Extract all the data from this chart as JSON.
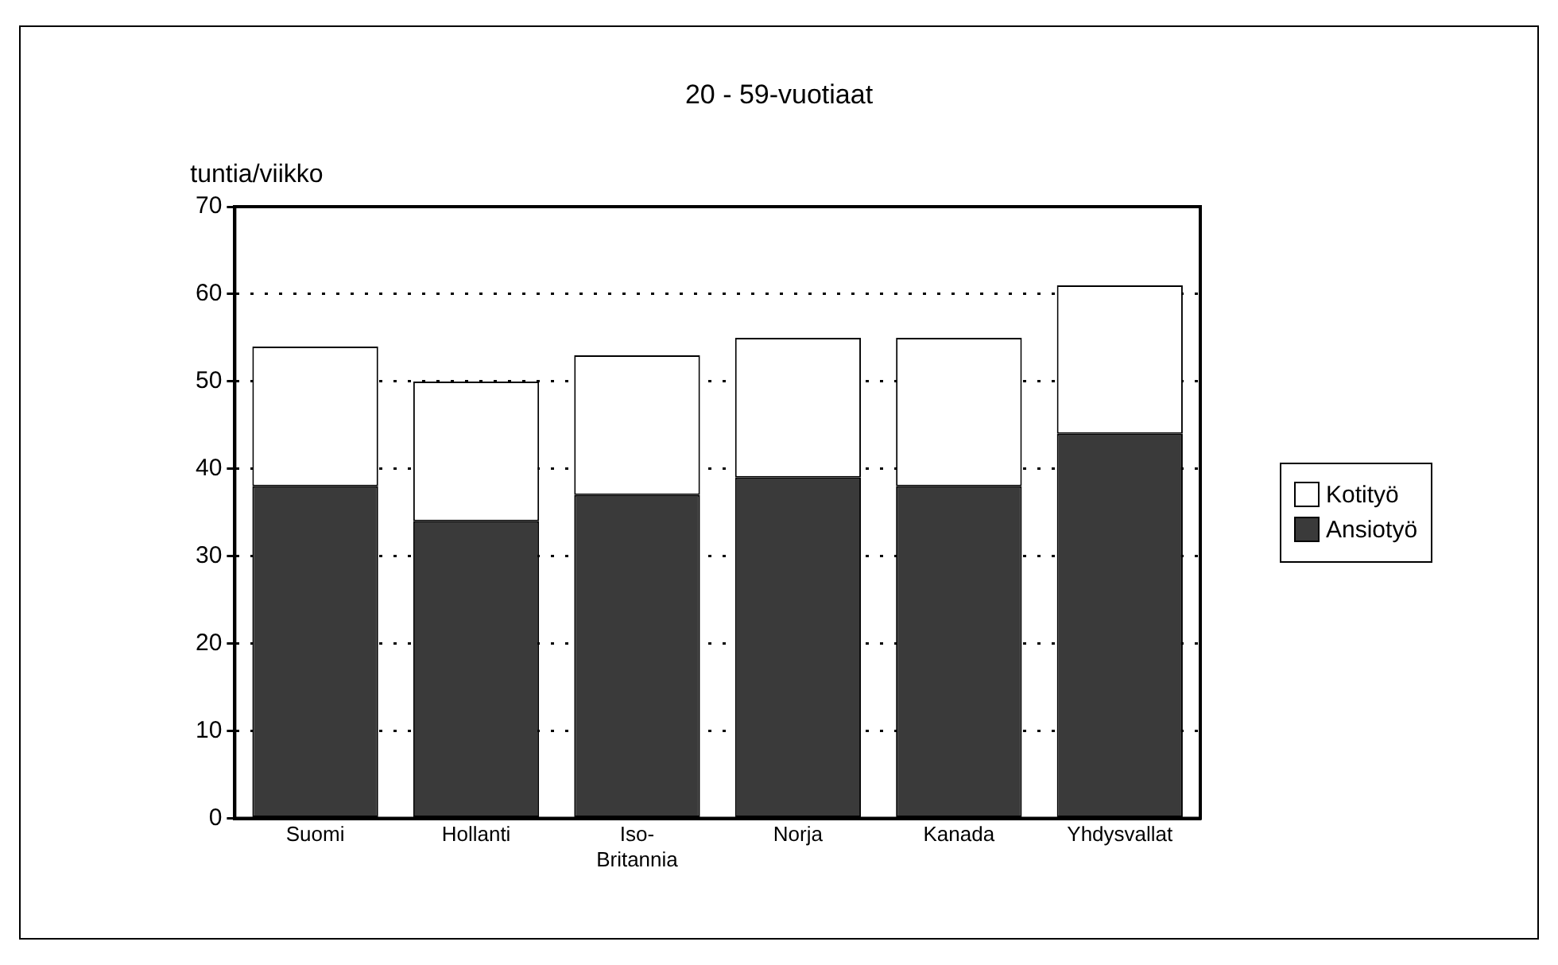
{
  "chart_data": {
    "type": "bar",
    "title": "20 - 59-vuotiaat",
    "ylabel": "tuntia/viikko",
    "categories": [
      "Suomi",
      "Hollanti",
      "Iso-Britannia",
      "Norja",
      "Kanada",
      "Yhdysvallat"
    ],
    "stacked": true,
    "series": [
      {
        "name": "Ansiotyö",
        "color": "#3a3a3a",
        "values": [
          38,
          34,
          37,
          39,
          38,
          44
        ]
      },
      {
        "name": "Kotityö",
        "color": "#ffffff",
        "values": [
          16,
          16,
          16,
          16,
          17,
          17
        ]
      }
    ],
    "ylim": [
      0,
      70
    ],
    "yticks": [
      0,
      10,
      20,
      30,
      40,
      50,
      60,
      70
    ],
    "grid": "y",
    "legend": "right"
  }
}
